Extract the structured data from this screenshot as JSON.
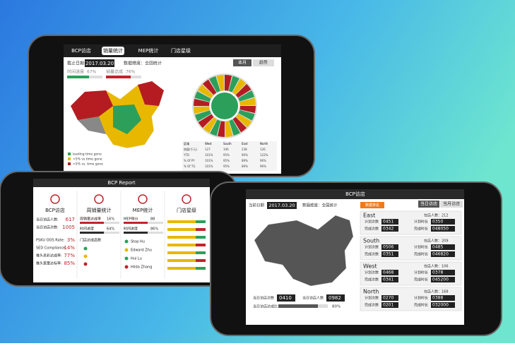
{
  "phone_top": {
    "tabs": [
      "BCP访店",
      "销量统计",
      "MEP统计",
      "门店星级"
    ],
    "date_label": "截止日期:",
    "date": "2017.03.20",
    "dimension": "数据维度：全国统计",
    "buttons": [
      "本月",
      "趋势"
    ],
    "progress": [
      {
        "label": "时间进度",
        "value": "67%"
      },
      {
        "label": "销量达成",
        "value": "76%"
      }
    ],
    "legend": [
      "leading time gone",
      "<5% vs time gone",
      ">5% vs. time gone"
    ],
    "table": {
      "header": [
        "区域",
        "West",
        "South",
        "East",
        "North"
      ],
      "rows": [
        [
          "销量(千元)",
          "127",
          "106",
          "238",
          "126"
        ],
        [
          "YTD",
          "101%",
          "95%",
          "90%",
          "122%"
        ],
        [
          "% Of PY",
          "101%",
          "95%",
          "89%",
          "96%"
        ],
        [
          "% Of TG",
          "101%",
          "95%",
          "89%",
          "96%"
        ]
      ]
    }
  },
  "phone_left": {
    "title": "BCP Report",
    "columns": [
      {
        "title": "BCP访店",
        "stats": [
          [
            "当日访店人数:",
            "617"
          ],
          [
            "当日访店次数:",
            "1005"
          ],
          [
            "PSKU OOS Rate:",
            "3%"
          ],
          [
            "SED Compliance:",
            "14%"
          ],
          [
            "推头息彩达成率:",
            "77%"
          ],
          [
            "推头里量达标率:",
            "85%"
          ]
        ]
      },
      {
        "title": "周销量统计",
        "stats": [
          [
            "周销量达成率",
            "16%"
          ],
          [
            "时间进度",
            "64%"
          ]
        ],
        "sub": "门店达成品数"
      },
      {
        "title": "MEP统计",
        "stats": [
          [
            "MEP得分",
            "88"
          ],
          [
            "时间进度",
            "86%"
          ]
        ],
        "names": [
          "Stop Hu",
          "Edward Zhu",
          "Hui Lu",
          "Hilda Zhang"
        ]
      },
      {
        "title": "门店星级"
      }
    ]
  },
  "phone_right": {
    "title": "BCP访店",
    "tabs": [
      "当日访店",
      "当月访店"
    ],
    "date_label": "当前日期",
    "date": "2017.03.20",
    "dimension": "数据维度：全国统计",
    "rank": "数据排名",
    "labels": [
      "计划次数",
      "计划时长",
      "完成次数",
      "完成时长"
    ],
    "regions": [
      {
        "name": "East",
        "staff": "在店人数：212",
        "values": [
          "0451",
          "0350",
          "0342",
          "048050"
        ]
      },
      {
        "name": "South",
        "staff": "在店人数：209",
        "values": [
          "0506",
          "0485",
          "0351",
          "046820"
        ]
      },
      {
        "name": "West",
        "staff": "在店人数：106",
        "values": [
          "0468",
          "0378",
          "0341",
          "045200"
        ]
      },
      {
        "name": "North",
        "staff": "在店人数：168",
        "values": [
          "0270",
          "0388",
          "0201",
          "032000"
        ]
      }
    ],
    "bottom": {
      "count_label": "当日访店次数",
      "count": "0410",
      "people_label": "当日访店人数",
      "people": "0982",
      "rate_label": "当日访店达成比",
      "rate": "80%"
    }
  }
}
